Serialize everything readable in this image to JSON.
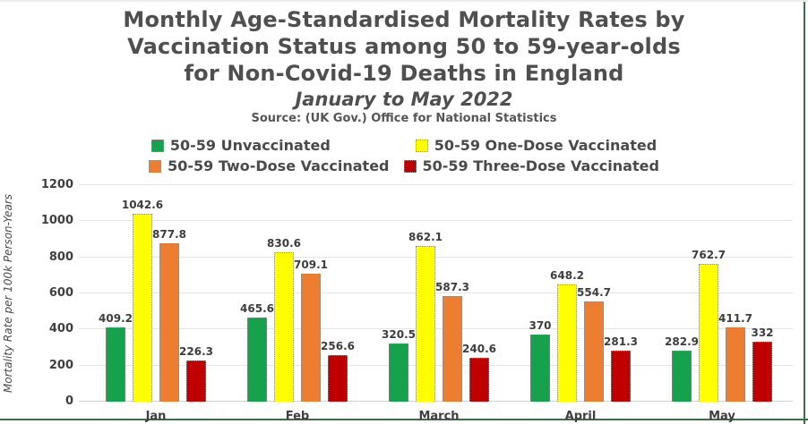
{
  "page": {
    "background": "#ffffff",
    "frame_border_color": "#3f6b44",
    "text_color": "#4f4f4f"
  },
  "title": {
    "line1": "Monthly Age-Standardised Mortality Rates by",
    "line2": "Vaccination Status among 50 to 59-year-olds",
    "line3": "for Non-Covid-19 Deaths in England",
    "subtitle": "January to May 2022",
    "source": "Source: (UK Gov.) Office for National Statistics"
  },
  "chart_data": {
    "type": "bar",
    "title": "Monthly Age-Standardised Mortality Rates by Vaccination Status among 50 to 59-year-olds for Non-Covid-19 Deaths in England, January to May 2022",
    "categories": [
      "Jan",
      "Feb",
      "March",
      "April",
      "May"
    ],
    "series": [
      {
        "name": "50-59 Unvaccinated",
        "color": "#16A24D",
        "values": [
          409.2,
          465.6,
          320.5,
          370,
          282.9
        ]
      },
      {
        "name": "50-59 One-Dose Vaccinated",
        "color": "#FFFF00",
        "values": [
          1042.6,
          830.6,
          862.1,
          648.2,
          762.7
        ]
      },
      {
        "name": "50-59 Two-Dose Vaccinated",
        "color": "#ED7D31",
        "values": [
          877.8,
          709.1,
          587.3,
          554.7,
          411.7
        ]
      },
      {
        "name": "50-59 Three-Dose Vaccinated",
        "color": "#C00000",
        "values": [
          226.3,
          256.6,
          240.6,
          281.3,
          332
        ]
      }
    ],
    "xlabel": "",
    "ylabel": "Mortality Rate per 100k Person-Years",
    "ylim": [
      0,
      1200
    ],
    "yticks": [
      0,
      200,
      400,
      600,
      800,
      1000,
      1200
    ],
    "grid": true,
    "legend_position": "top",
    "legend_rows": [
      [
        0,
        1
      ],
      [
        2,
        3
      ]
    ],
    "data_labels": true
  }
}
